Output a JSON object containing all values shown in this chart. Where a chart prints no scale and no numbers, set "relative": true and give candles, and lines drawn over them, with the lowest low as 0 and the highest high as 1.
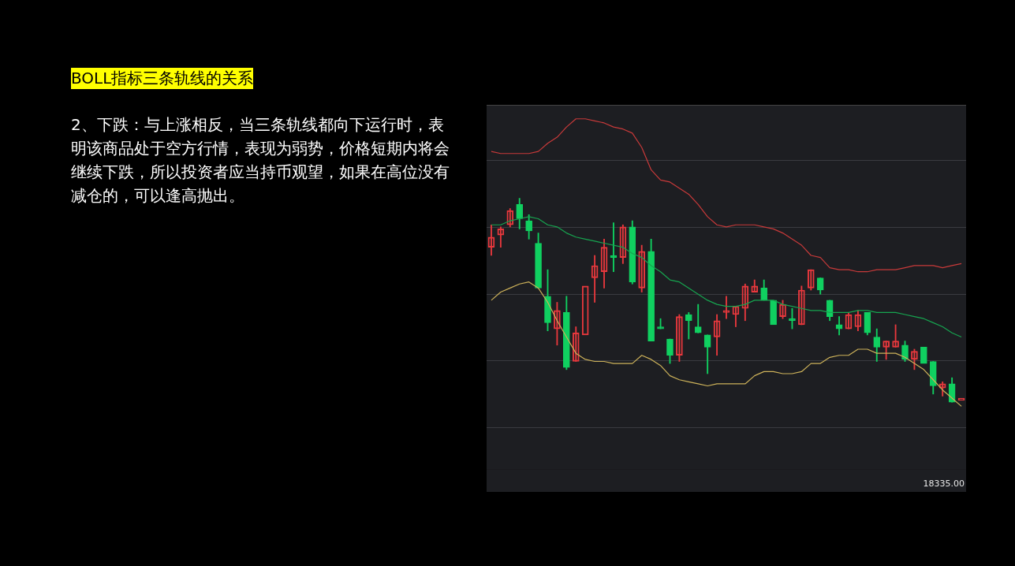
{
  "chart_data": {
    "type": "candlestick",
    "title": "BOLL指标三条轨线的关系",
    "subtitle": "2、下跌：与上涨相反，当三条轨线都向下运行时，表明该商品处于空方行情，表现为弱势，价格短期内将会继续下跌，所以投资者应当持币观望，如果在高位没有减仓的，可以逢高抛出。",
    "annotations": [
      "18335.00"
    ],
    "relative": true,
    "grid": "y",
    "legend": false,
    "categories": [
      null,
      null,
      null,
      null,
      null,
      null,
      null,
      null,
      null,
      null,
      null,
      null,
      null,
      null,
      null,
      null,
      null,
      null,
      null,
      null,
      null,
      null,
      null,
      null,
      null,
      null,
      null,
      null,
      null,
      null,
      null,
      null,
      null,
      null,
      null,
      null,
      null,
      null,
      null,
      null,
      null,
      null,
      null,
      null,
      null,
      null,
      null,
      null,
      null,
      null,
      null
    ],
    "ohlc": [
      [
        0.76,
        0.87,
        0.72,
        0.81
      ],
      [
        0.82,
        0.86,
        0.76,
        0.85
      ],
      [
        0.87,
        0.95,
        0.86,
        0.94
      ],
      [
        0.97,
        1.0,
        0.85,
        0.9
      ],
      [
        0.89,
        0.92,
        0.8,
        0.84
      ],
      [
        0.78,
        0.83,
        0.56,
        0.56
      ],
      [
        0.52,
        0.65,
        0.35,
        0.39
      ],
      [
        0.36,
        0.49,
        0.28,
        0.45
      ],
      [
        0.44,
        0.52,
        0.16,
        0.17
      ],
      [
        0.2,
        0.37,
        0.2,
        0.34
      ],
      [
        0.33,
        0.57,
        0.33,
        0.57
      ],
      [
        0.61,
        0.72,
        0.49,
        0.67
      ],
      [
        0.64,
        0.8,
        0.56,
        0.76
      ],
      [
        0.72,
        0.88,
        0.64,
        0.71
      ],
      [
        0.71,
        0.87,
        0.68,
        0.86
      ],
      [
        0.86,
        0.89,
        0.58,
        0.59
      ],
      [
        0.56,
        0.77,
        0.54,
        0.74
      ],
      [
        0.74,
        0.8,
        0.3,
        0.3
      ],
      [
        0.37,
        0.41,
        0.36,
        0.36
      ],
      [
        0.31,
        0.31,
        0.19,
        0.23
      ],
      [
        0.23,
        0.43,
        0.2,
        0.42
      ],
      [
        0.43,
        0.44,
        0.31,
        0.4
      ],
      [
        0.37,
        0.48,
        0.34,
        0.34
      ],
      [
        0.33,
        0.33,
        0.14,
        0.27
      ],
      [
        0.32,
        0.43,
        0.23,
        0.4
      ],
      [
        0.44,
        0.52,
        0.41,
        0.45
      ],
      [
        0.43,
        0.47,
        0.37,
        0.47
      ],
      [
        0.46,
        0.58,
        0.4,
        0.57
      ],
      [
        0.54,
        0.6,
        0.54,
        0.57
      ],
      [
        0.56,
        0.6,
        0.5,
        0.5
      ],
      [
        0.5,
        0.5,
        0.38,
        0.38
      ],
      [
        0.42,
        0.5,
        0.41,
        0.48
      ],
      [
        0.41,
        0.46,
        0.36,
        0.4
      ],
      [
        0.38,
        0.57,
        0.38,
        0.55
      ],
      [
        0.56,
        0.65,
        0.55,
        0.65
      ],
      [
        0.61,
        0.61,
        0.53,
        0.55
      ],
      [
        0.5,
        0.5,
        0.4,
        0.42
      ],
      [
        0.38,
        0.42,
        0.33,
        0.36
      ],
      [
        0.36,
        0.44,
        0.36,
        0.43
      ],
      [
        0.37,
        0.45,
        0.35,
        0.43
      ],
      [
        0.44,
        0.44,
        0.33,
        0.34
      ],
      [
        0.32,
        0.36,
        0.2,
        0.27
      ],
      [
        0.27,
        0.3,
        0.21,
        0.3
      ],
      [
        0.27,
        0.38,
        0.27,
        0.3
      ],
      [
        0.28,
        0.3,
        0.2,
        0.21
      ],
      [
        0.21,
        0.26,
        0.16,
        0.25
      ],
      [
        0.27,
        0.27,
        0.19,
        0.19
      ],
      [
        0.2,
        0.2,
        0.04,
        0.08
      ],
      [
        0.07,
        0.1,
        0.03,
        0.09
      ],
      [
        0.09,
        0.12,
        0.0,
        0.0
      ],
      [
        0.01,
        0.02,
        0.01,
        0.02
      ]
    ],
    "colors": [
      "#e8383d",
      "#e8383d",
      "#e8383d",
      "#10d060",
      "#10d060",
      "#10d060",
      "#10d060",
      "#e8383d",
      "#10d060",
      "#e8383d",
      "#e8383d",
      "#e8383d",
      "#e8383d",
      "#10d060",
      "#e8383d",
      "#10d060",
      "#e8383d",
      "#10d060",
      "#10d060",
      "#10d060",
      "#e8383d",
      "#10d060",
      "#10d060",
      "#10d060",
      "#e8383d",
      "#e8383d",
      "#e8383d",
      "#e8383d",
      "#e8383d",
      "#10d060",
      "#10d060",
      "#e8383d",
      "#10d060",
      "#e8383d",
      "#e8383d",
      "#10d060",
      "#10d060",
      "#10d060",
      "#e8383d",
      "#e8383d",
      "#10d060",
      "#10d060",
      "#e8383d",
      "#e8383d",
      "#10d060",
      "#e8383d",
      "#10d060",
      "#10d060",
      "#e8383d",
      "#10d060",
      "#e8383d"
    ],
    "series": [
      {
        "type": "line",
        "color": "#c83a3a",
        "values": [
          1.23,
          1.22,
          1.22,
          1.22,
          1.22,
          1.23,
          1.27,
          1.3,
          1.35,
          1.39,
          1.39,
          1.38,
          1.37,
          1.35,
          1.34,
          1.32,
          1.25,
          1.14,
          1.09,
          1.08,
          1.05,
          1.02,
          0.97,
          0.91,
          0.87,
          0.86,
          0.87,
          0.87,
          0.87,
          0.86,
          0.85,
          0.83,
          0.8,
          0.77,
          0.72,
          0.71,
          0.66,
          0.65,
          0.65,
          0.64,
          0.64,
          0.65,
          0.65,
          0.65,
          0.66,
          0.67,
          0.67,
          0.67,
          0.66,
          0.67,
          0.68
        ]
      },
      {
        "type": "line",
        "color": "#17a550",
        "values": [
          0.87,
          0.87,
          0.89,
          0.9,
          0.91,
          0.9,
          0.87,
          0.86,
          0.83,
          0.81,
          0.8,
          0.79,
          0.78,
          0.77,
          0.76,
          0.73,
          0.71,
          0.67,
          0.64,
          0.6,
          0.59,
          0.56,
          0.53,
          0.5,
          0.48,
          0.47,
          0.47,
          0.48,
          0.5,
          0.5,
          0.5,
          0.48,
          0.47,
          0.46,
          0.45,
          0.45,
          0.44,
          0.44,
          0.44,
          0.45,
          0.45,
          0.44,
          0.44,
          0.44,
          0.43,
          0.42,
          0.41,
          0.39,
          0.37,
          0.34,
          0.32
        ]
      },
      {
        "type": "line",
        "color": "#cdb25a",
        "values": [
          0.5,
          0.54,
          0.56,
          0.58,
          0.59,
          0.56,
          0.49,
          0.4,
          0.32,
          0.24,
          0.21,
          0.2,
          0.2,
          0.19,
          0.19,
          0.19,
          0.23,
          0.21,
          0.18,
          0.13,
          0.11,
          0.1,
          0.09,
          0.08,
          0.09,
          0.09,
          0.09,
          0.09,
          0.13,
          0.15,
          0.15,
          0.14,
          0.14,
          0.15,
          0.19,
          0.19,
          0.22,
          0.23,
          0.23,
          0.26,
          0.26,
          0.24,
          0.24,
          0.24,
          0.22,
          0.19,
          0.16,
          0.11,
          0.06,
          0.02,
          -0.02
        ]
      }
    ]
  }
}
